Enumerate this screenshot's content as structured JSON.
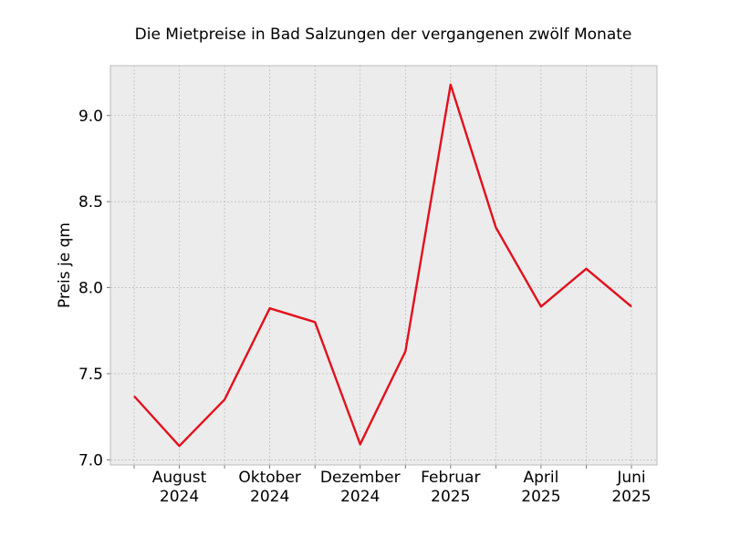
{
  "chart_data": {
    "type": "line",
    "title": "Die Mietpreise in Bad Salzungen der vergangenen zwölf Monate",
    "xlabel": "",
    "ylabel": "Preis je qm",
    "x": [
      "2024-07",
      "2024-08",
      "2024-09",
      "2024-10",
      "2024-11",
      "2024-12",
      "2025-01",
      "2025-02",
      "2025-03",
      "2025-04",
      "2025-05",
      "2025-06"
    ],
    "series": [
      {
        "values": [
          7.37,
          7.08,
          7.35,
          7.88,
          7.8,
          7.09,
          7.63,
          9.18,
          8.35,
          7.89,
          8.11,
          7.89
        ]
      }
    ],
    "x_tick_labels": [
      {
        "x": "2024-08",
        "line1": "August",
        "line2": "2024"
      },
      {
        "x": "2024-10",
        "line1": "Oktober",
        "line2": "2024"
      },
      {
        "x": "2024-12",
        "line1": "Dezember",
        "line2": "2024"
      },
      {
        "x": "2025-02",
        "line1": "Februar",
        "line2": "2025"
      },
      {
        "x": "2025-04",
        "line1": "April",
        "line2": "2025"
      },
      {
        "x": "2025-06",
        "line1": "Juni",
        "line2": "2025"
      }
    ],
    "y_ticks": [
      "7.0",
      "7.5",
      "8.0",
      "8.5",
      "9.0"
    ],
    "ylim": [
      6.97,
      9.29
    ],
    "grid": true,
    "colors": {
      "line": "#e3101c",
      "plot_background": "#ececec",
      "grid": "#b0b0b0"
    }
  }
}
